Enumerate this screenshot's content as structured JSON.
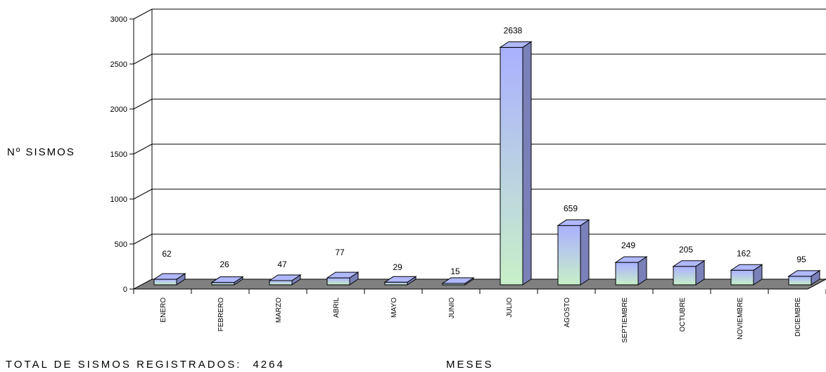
{
  "chart_data": {
    "type": "bar",
    "categories": [
      "ENERO",
      "FEBRERO",
      "MARZO",
      "ABRIL",
      "MAYO",
      "JUNIO",
      "JULIO",
      "AGOSTO",
      "SEPTIEMBRE",
      "OCTUBRE",
      "NOVIEMBRE",
      "DICIEMBRE"
    ],
    "values": [
      62,
      26,
      47,
      77,
      29,
      15,
      2638,
      659,
      249,
      205,
      162,
      95
    ],
    "title": "",
    "xlabel": "MESES",
    "ylabel": "Nº SISMOS",
    "ylim": [
      0,
      3000
    ],
    "yticks": [
      "0",
      "500",
      "1000",
      "1500",
      "2000",
      "2500",
      "3000"
    ],
    "grid": true,
    "legend": "none"
  },
  "footer": {
    "total_label": "TOTAL DE SISMOS REGISTRADOS:",
    "total_value": "4264"
  },
  "colors": {
    "floor": "#808080",
    "bar_front_top": "#aab0ff",
    "bar_front_bottom": "#c8f0c8",
    "bar_side": "#7a80b8",
    "bar_top": "#b0b8ff"
  }
}
